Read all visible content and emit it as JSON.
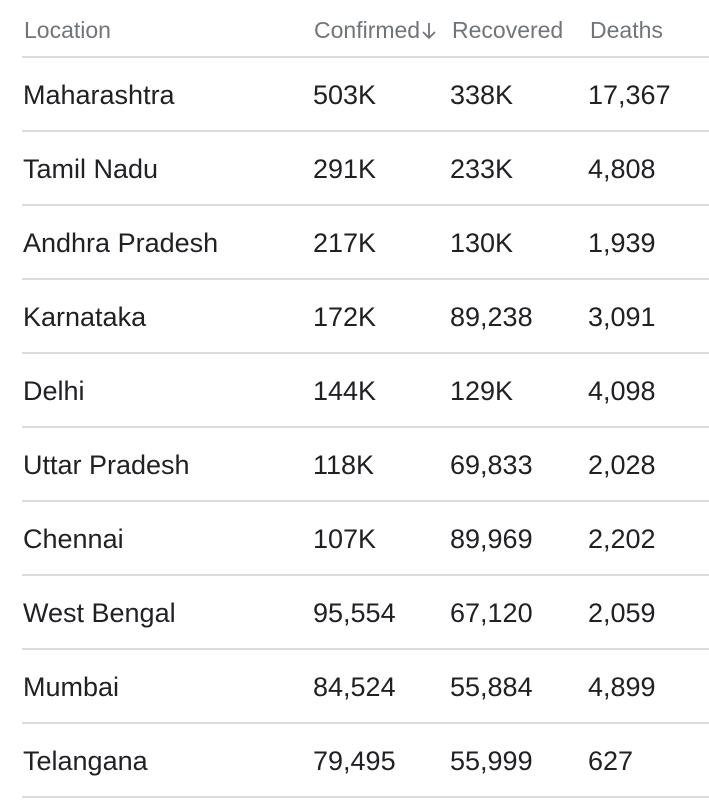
{
  "table": {
    "headers": {
      "location": "Location",
      "confirmed": "Confirmed",
      "recovered": "Recovered",
      "deaths": "Deaths"
    },
    "sort": {
      "column": "confirmed",
      "direction": "descending",
      "icon": "arrow-down-icon"
    },
    "rows": [
      {
        "location": "Maharashtra",
        "confirmed": "503K",
        "recovered": "338K",
        "deaths": "17,367"
      },
      {
        "location": "Tamil Nadu",
        "confirmed": "291K",
        "recovered": "233K",
        "deaths": "4,808"
      },
      {
        "location": "Andhra Pradesh",
        "confirmed": "217K",
        "recovered": "130K",
        "deaths": "1,939"
      },
      {
        "location": "Karnataka",
        "confirmed": "172K",
        "recovered": "89,238",
        "deaths": "3,091"
      },
      {
        "location": "Delhi",
        "confirmed": "144K",
        "recovered": "129K",
        "deaths": "4,098"
      },
      {
        "location": "Uttar Pradesh",
        "confirmed": "118K",
        "recovered": "69,833",
        "deaths": "2,028"
      },
      {
        "location": "Chennai",
        "confirmed": "107K",
        "recovered": "89,969",
        "deaths": "2,202"
      },
      {
        "location": "West Bengal",
        "confirmed": "95,554",
        "recovered": "67,120",
        "deaths": "2,059"
      },
      {
        "location": "Mumbai",
        "confirmed": "84,524",
        "recovered": "55,884",
        "deaths": "4,899"
      },
      {
        "location": "Telangana",
        "confirmed": "79,495",
        "recovered": "55,999",
        "deaths": "627"
      }
    ]
  },
  "colors": {
    "header_text": "#70757a",
    "body_text": "#202124",
    "divider": "#dadce0"
  }
}
